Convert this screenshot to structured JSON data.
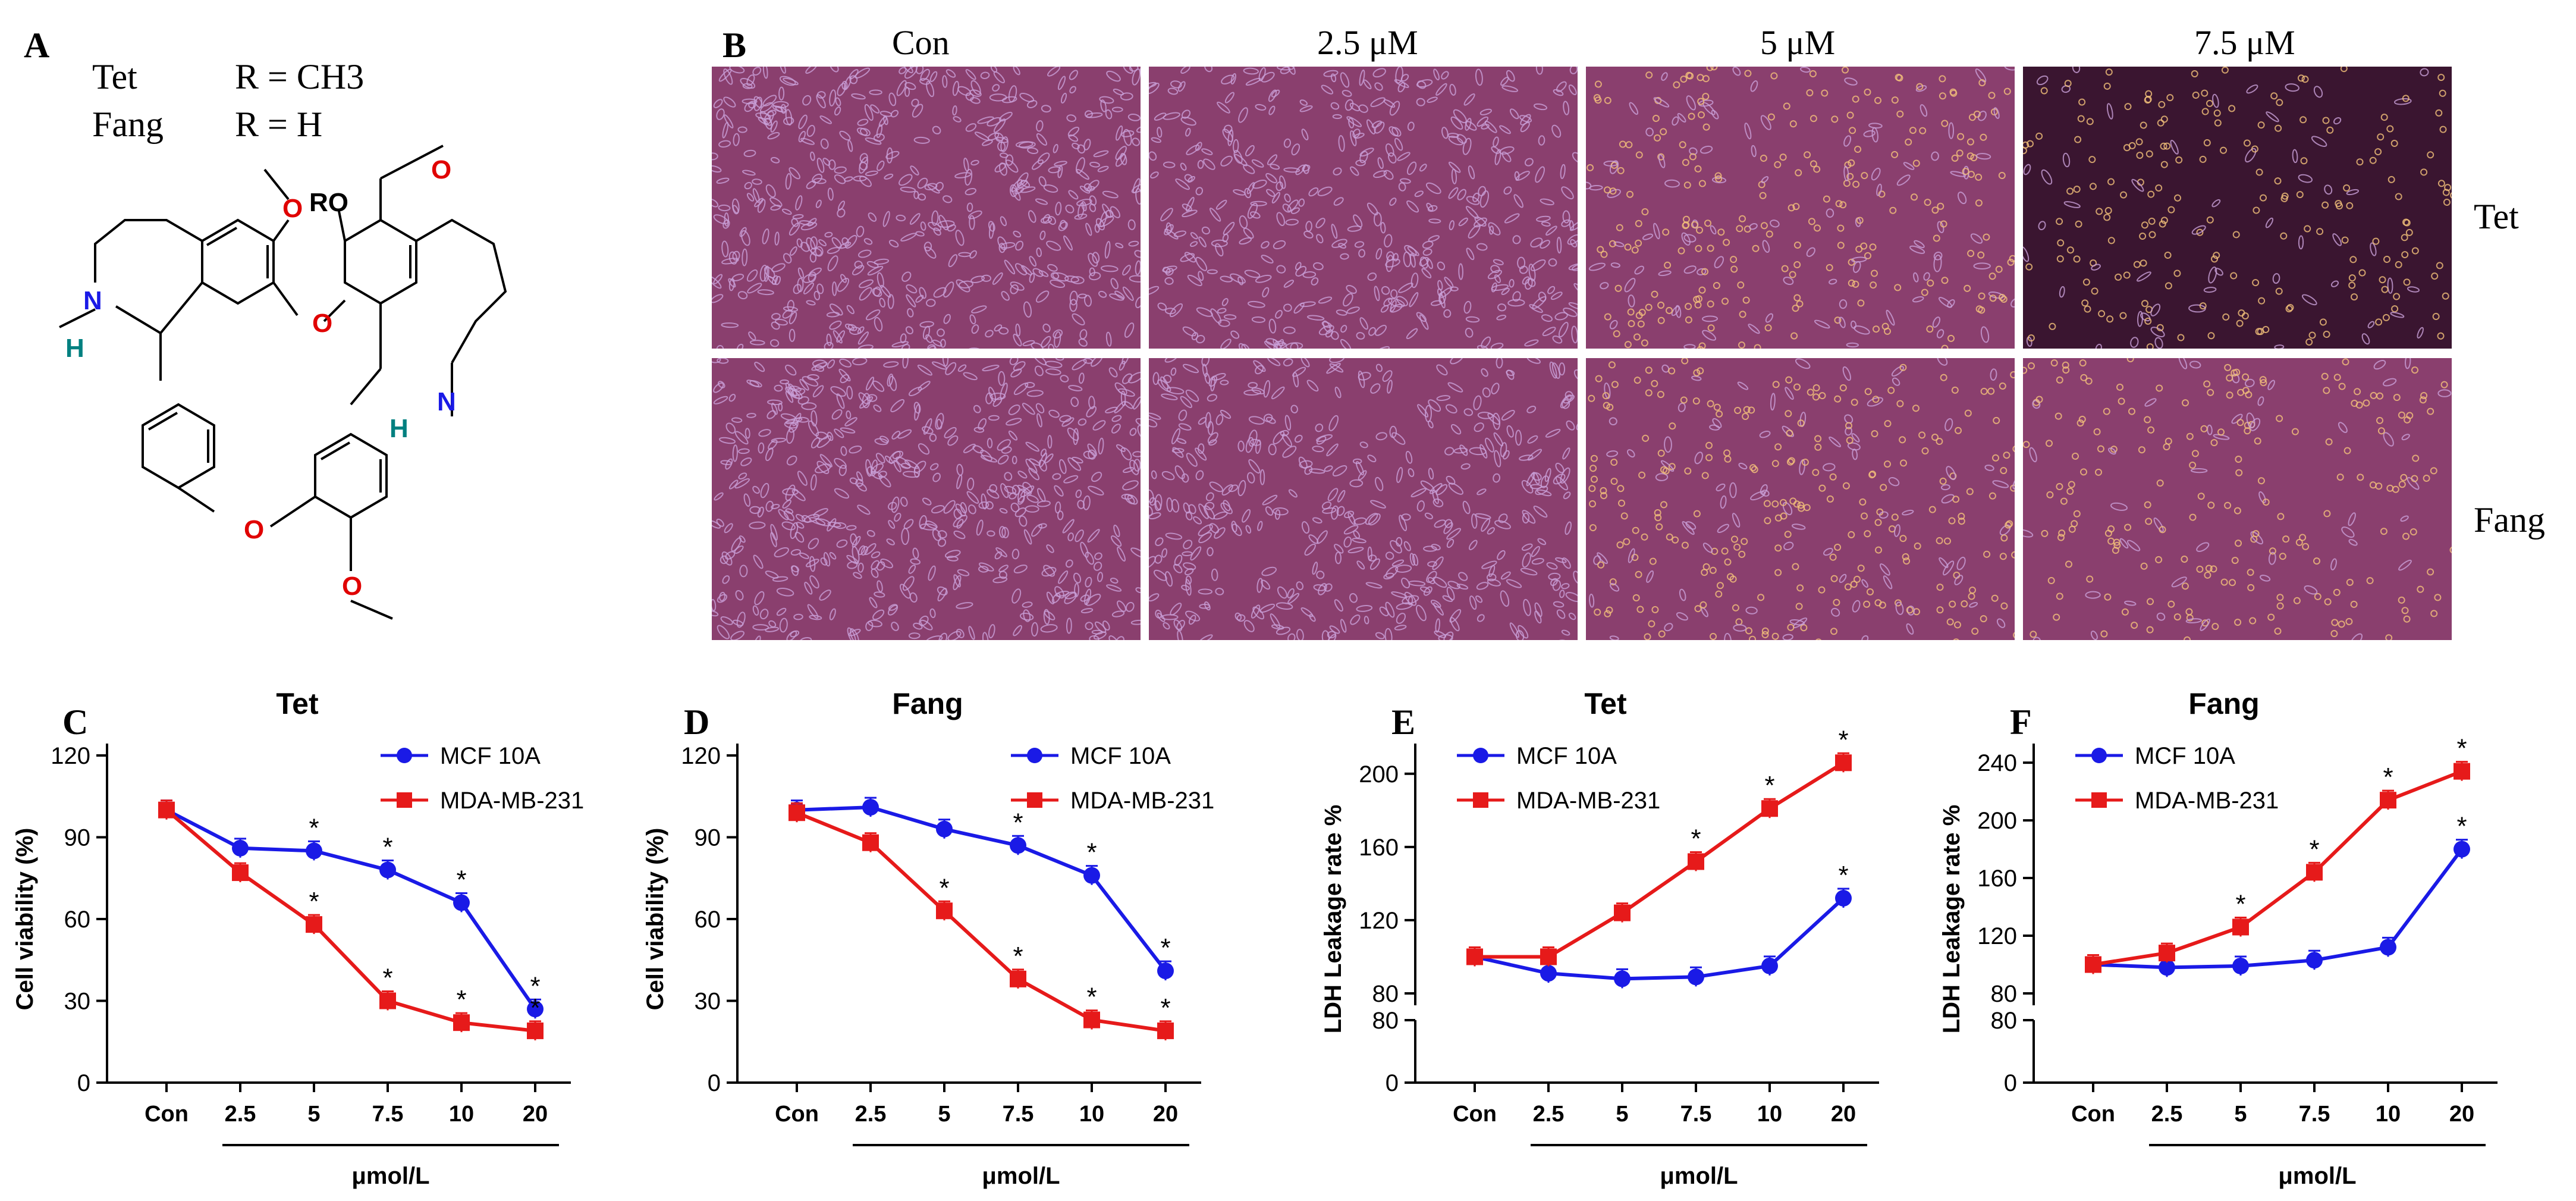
{
  "panelA": {
    "letter": "A",
    "rows": [
      {
        "name": "Tet",
        "formula": "R = CH3"
      },
      {
        "name": "Fang",
        "formula": "R = H"
      }
    ],
    "atoms": {
      "ro": "RO",
      "o": "O",
      "n": "N",
      "h": "H"
    }
  },
  "panelB": {
    "letter": "B",
    "columns": [
      "Con",
      "2.5 μM",
      "5 μM",
      "7.5 μM"
    ],
    "rows": [
      "Tet",
      "Fang"
    ],
    "colors": {
      "tint": "#8a3f6e",
      "dark": "#3a1530",
      "cell": "#c9a0d8",
      "bright": "#f4c27a"
    }
  },
  "charts": [
    {
      "letter": "C",
      "chart_data": {
        "type": "line",
        "title": "Tet",
        "categories": [
          "Con",
          "2.5",
          "5",
          "7.5",
          "10",
          "20"
        ],
        "xlabel": "μmol/L",
        "ylabel": "Cell viability (%)",
        "yticks": [
          "0",
          "30",
          "60",
          "90",
          "120"
        ],
        "ylim": [
          0,
          120
        ],
        "series": [
          {
            "name": "MCF 10A",
            "color": "#1a1ae6",
            "values": [
              100,
              86,
              85,
              78,
              66,
              27
            ],
            "sig": [
              false,
              false,
              true,
              true,
              true,
              true
            ]
          },
          {
            "name": "MDA-MB-231",
            "color": "#e61a1a",
            "values": [
              100,
              77,
              58,
              30,
              22,
              19
            ],
            "sig": [
              false,
              false,
              true,
              true,
              true,
              true
            ]
          }
        ]
      }
    },
    {
      "letter": "D",
      "chart_data": {
        "type": "line",
        "title": "Fang",
        "categories": [
          "Con",
          "2.5",
          "5",
          "7.5",
          "10",
          "20"
        ],
        "xlabel": "μmol/L",
        "ylabel": "Cell viability (%)",
        "yticks": [
          "0",
          "30",
          "60",
          "90",
          "120"
        ],
        "ylim": [
          0,
          120
        ],
        "series": [
          {
            "name": "MCF 10A",
            "color": "#1a1ae6",
            "values": [
              100,
              101,
              93,
              87,
              76,
              41
            ],
            "sig": [
              false,
              false,
              false,
              true,
              true,
              true
            ]
          },
          {
            "name": "MDA-MB-231",
            "color": "#e61a1a",
            "values": [
              99,
              88,
              63,
              38,
              23,
              19
            ],
            "sig": [
              false,
              false,
              true,
              true,
              true,
              true
            ]
          }
        ]
      }
    },
    {
      "letter": "E",
      "chart_data": {
        "type": "line",
        "title": "Tet",
        "categories": [
          "Con",
          "2.5",
          "5",
          "7.5",
          "10",
          "20"
        ],
        "xlabel": "μmol/L",
        "ylabel": "LDH Leakage rate %",
        "yticks": [
          "0",
          "80",
          "120",
          "160",
          "200"
        ],
        "ylim": [
          0,
          210
        ],
        "axis_break": [
          0,
          80
        ],
        "series": [
          {
            "name": "MCF 10A",
            "color": "#1a1ae6",
            "values": [
              100,
              91,
              88,
              89,
              95,
              132
            ],
            "sig": [
              false,
              false,
              false,
              false,
              false,
              true
            ]
          },
          {
            "name": "MDA-MB-231",
            "color": "#e61a1a",
            "values": [
              100,
              100,
              124,
              152,
              181,
              206
            ],
            "sig": [
              false,
              false,
              false,
              true,
              true,
              true
            ]
          }
        ]
      }
    },
    {
      "letter": "F",
      "chart_data": {
        "type": "line",
        "title": "Fang",
        "categories": [
          "Con",
          "2.5",
          "5",
          "7.5",
          "10",
          "20"
        ],
        "xlabel": "μmol/L",
        "ylabel": "LDH Leakage rate %",
        "yticks": [
          "0",
          "80",
          "80",
          "120",
          "160",
          "200",
          "240"
        ],
        "ylim": [
          0,
          245
        ],
        "axis_break": [
          0,
          80
        ],
        "series": [
          {
            "name": "MCF 10A",
            "color": "#1a1ae6",
            "values": [
              100,
              98,
              99,
              103,
              112,
              180
            ],
            "sig": [
              false,
              false,
              false,
              false,
              false,
              true
            ]
          },
          {
            "name": "MDA-MB-231",
            "color": "#e61a1a",
            "values": [
              100,
              108,
              126,
              164,
              214,
              234
            ],
            "sig": [
              false,
              false,
              true,
              true,
              true,
              true
            ]
          }
        ]
      }
    }
  ]
}
